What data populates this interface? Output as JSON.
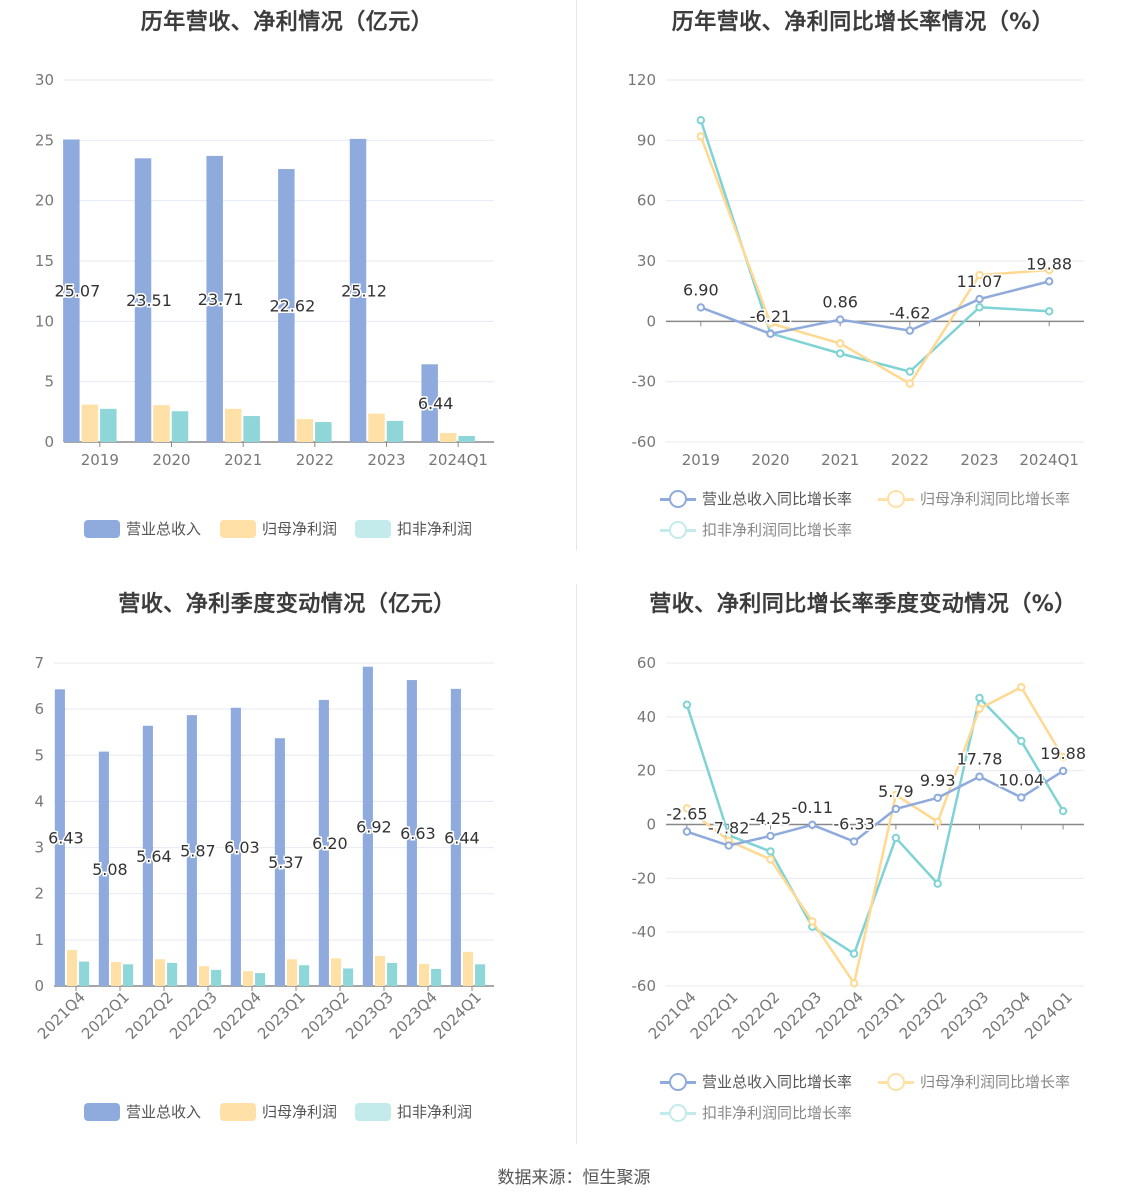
{
  "colors": {
    "revenue": "#8faadc",
    "net_profit": "#ffe0a6",
    "deducted_profit": "#8fd6d9",
    "revenue_line": "#8faadc",
    "net_line": "#ffd991",
    "deducted_line": "#7fd3d5"
  },
  "footer": "数据来源：恒生聚源",
  "chart_data": [
    {
      "type": "bar",
      "title": "历年营收、净利情况（亿元）",
      "categories": [
        "2019",
        "2020",
        "2021",
        "2022",
        "2023",
        "2024Q1"
      ],
      "ylim": [
        0,
        30
      ],
      "yticks": [
        "0",
        "5",
        "10",
        "15",
        "20",
        "25",
        "30"
      ],
      "series": [
        {
          "name": "营业总收入",
          "values": [
            25.07,
            23.51,
            23.71,
            22.62,
            25.12,
            6.44
          ],
          "labels": [
            "25.07",
            "23.51",
            "23.71",
            "22.62",
            "25.12",
            "6.44"
          ]
        },
        {
          "name": "归母净利润",
          "values": [
            3.1,
            3.05,
            2.75,
            1.9,
            2.35,
            0.75
          ]
        },
        {
          "name": "扣非净利润",
          "values": [
            2.75,
            2.55,
            2.15,
            1.65,
            1.75,
            0.5
          ]
        }
      ],
      "legend": "bottom"
    },
    {
      "type": "line",
      "title": "历年营收、净利同比增长率情况（%）",
      "categories": [
        "2019",
        "2020",
        "2021",
        "2022",
        "2023",
        "2024Q1"
      ],
      "ylim": [
        -60,
        120
      ],
      "yticks": [
        "-60",
        "-30",
        "0",
        "30",
        "60",
        "90",
        "120"
      ],
      "series": [
        {
          "name": "营业总收入同比增长率",
          "values": [
            6.9,
            -6.21,
            0.86,
            -4.62,
            11.07,
            19.88
          ],
          "labels": [
            "6.90",
            "-6.21",
            "0.86",
            "-4.62",
            "11.07",
            "19.88"
          ]
        },
        {
          "name": "归母净利润同比增长率",
          "values": [
            92,
            -1,
            -11,
            -31,
            23,
            25.5
          ]
        },
        {
          "name": "扣非净利润同比增长率",
          "values": [
            100,
            -6,
            -16,
            -25,
            7,
            5
          ]
        }
      ],
      "legend": "bottom"
    },
    {
      "type": "bar",
      "title": "营收、净利季度变动情况（亿元）",
      "categories": [
        "2021Q4",
        "2022Q1",
        "2022Q2",
        "2022Q3",
        "2022Q4",
        "2023Q1",
        "2023Q2",
        "2023Q3",
        "2023Q4",
        "2024Q1"
      ],
      "ylim": [
        0,
        7
      ],
      "yticks": [
        "0",
        "1",
        "2",
        "3",
        "4",
        "5",
        "6",
        "7"
      ],
      "series": [
        {
          "name": "营业总收入",
          "values": [
            6.43,
            5.08,
            5.64,
            5.87,
            6.03,
            5.37,
            6.2,
            6.92,
            6.63,
            6.44
          ],
          "labels": [
            "6.43",
            "5.08",
            "5.64",
            "5.87",
            "6.03",
            "5.37",
            "6.20",
            "6.92",
            "6.63",
            "6.44"
          ]
        },
        {
          "name": "归母净利润",
          "values": [
            0.78,
            0.52,
            0.58,
            0.43,
            0.32,
            0.58,
            0.6,
            0.65,
            0.48,
            0.74
          ]
        },
        {
          "name": "扣非净利润",
          "values": [
            0.53,
            0.47,
            0.5,
            0.35,
            0.28,
            0.45,
            0.38,
            0.5,
            0.37,
            0.47
          ]
        }
      ],
      "legend": "bottom"
    },
    {
      "type": "line",
      "title": "营收、净利同比增长率季度变动情况（%）",
      "categories": [
        "2021Q4",
        "2022Q1",
        "2022Q2",
        "2022Q3",
        "2022Q4",
        "2023Q1",
        "2023Q2",
        "2023Q3",
        "2023Q4",
        "2024Q1"
      ],
      "ylim": [
        -60,
        60
      ],
      "yticks": [
        "-60",
        "-40",
        "-20",
        "0",
        "20",
        "40",
        "60"
      ],
      "series": [
        {
          "name": "营业总收入同比增长率",
          "values": [
            -2.65,
            -7.82,
            -4.25,
            -0.11,
            -6.33,
            5.79,
            9.93,
            17.78,
            10.04,
            19.88
          ],
          "labels": [
            "-2.65",
            "-7.82",
            "-4.25",
            "-0.11",
            "-6.33",
            "5.79",
            "9.93",
            "17.78",
            "10.04",
            "19.88"
          ]
        },
        {
          "name": "归母净利润同比增长率",
          "values": [
            6,
            -6,
            -13,
            -36,
            -59,
            11,
            1,
            43,
            51,
            25
          ]
        },
        {
          "name": "扣非净利润同比增长率",
          "values": [
            44.5,
            -4,
            -10,
            -38,
            -48,
            -5,
            -22,
            47,
            31,
            5
          ]
        }
      ],
      "legend": "bottom"
    }
  ]
}
